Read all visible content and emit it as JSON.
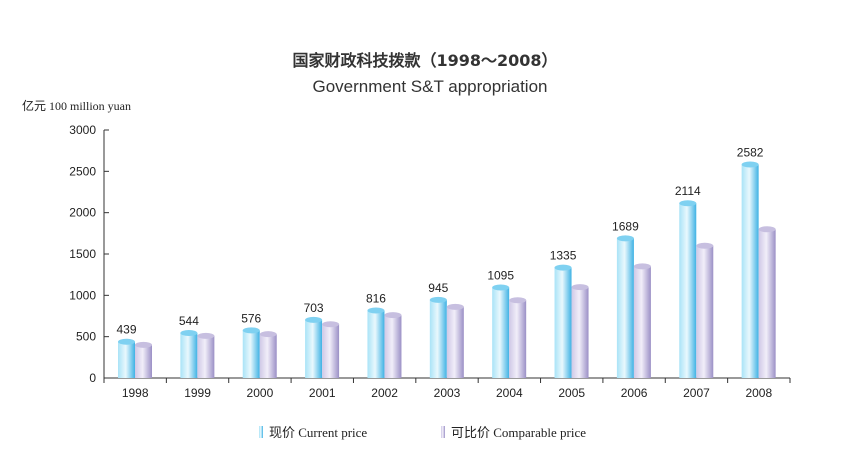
{
  "chart_data": {
    "type": "bar",
    "title": "国家财政科技拨款（1998～2008）",
    "subtitle": "Government S&T appropriation",
    "ylabel": "亿元 100 million yuan",
    "xlabel": "",
    "ylim": [
      0,
      3000
    ],
    "yticks": [
      0,
      500,
      1000,
      1500,
      2000,
      2500,
      3000
    ],
    "categories": [
      "1998",
      "1999",
      "2000",
      "2001",
      "2002",
      "2003",
      "2004",
      "2005",
      "2006",
      "2007",
      "2008"
    ],
    "series": [
      {
        "name": "现价 Current price",
        "values": [
          439,
          544,
          576,
          703,
          816,
          945,
          1095,
          1335,
          1689,
          2114,
          2582
        ],
        "data_labels": [
          "439",
          "544",
          "576",
          "703",
          "816",
          "945",
          "1095",
          "1335",
          "1689",
          "2114",
          "2582"
        ],
        "color": "#5ec4ec"
      },
      {
        "name": "可比价 Comparable price",
        "values": [
          400,
          510,
          530,
          650,
          760,
          860,
          940,
          1100,
          1350,
          1600,
          1800
        ],
        "color": "#b8afd6"
      }
    ],
    "grid": false,
    "legend_position": "bottom"
  }
}
